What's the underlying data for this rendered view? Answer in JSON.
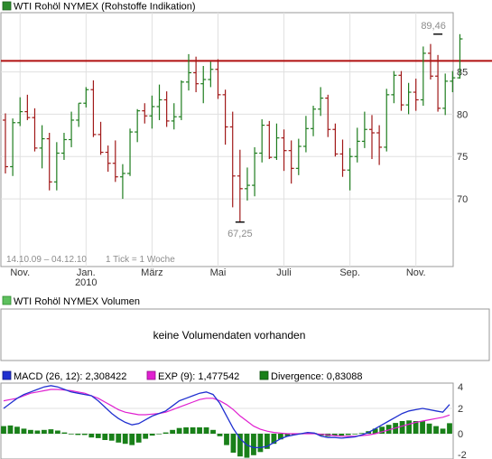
{
  "chart_data": [
    {
      "type": "ohlc",
      "legend": "WTI Rohöl NYMEX (Rohstoffe Indikation)",
      "period": "14.10.09 – 04.12.10",
      "tick_info": "1 Tick = 1 Woche",
      "ylim": [
        62,
        92
      ],
      "yticks": [
        70,
        75,
        80,
        85
      ],
      "x_labels": [
        {
          "label": "Nov.",
          "index": 2
        },
        {
          "label": "Jan.",
          "index": 11
        },
        {
          "label": "2010",
          "index": 11
        },
        {
          "label": "März",
          "index": 20
        },
        {
          "label": "Mai",
          "index": 29
        },
        {
          "label": "Juli",
          "index": 38
        },
        {
          "label": "Sep.",
          "index": 47
        },
        {
          "label": "Nov.",
          "index": 56
        }
      ],
      "reference_line": 86.3,
      "annotations": [
        {
          "text": "89,46",
          "index": 59,
          "value": 89.46
        },
        {
          "text": "67,25",
          "index": 32,
          "value": 67.25
        }
      ],
      "candles": [
        [
          79.3,
          80.1,
          73.0,
          73.8
        ],
        [
          73.8,
          79.5,
          72.7,
          79.0
        ],
        [
          79.0,
          82.0,
          78.6,
          80.3
        ],
        [
          80.3,
          82.3,
          79.3,
          79.6
        ],
        [
          79.6,
          80.7,
          75.6,
          76.0
        ],
        [
          76.0,
          78.7,
          73.6,
          77.1
        ],
        [
          77.1,
          77.8,
          71.0,
          72.0
        ],
        [
          72.0,
          76.7,
          71.0,
          75.4
        ],
        [
          75.4,
          77.8,
          74.6,
          77.0
        ],
        [
          77.0,
          80.3,
          76.1,
          79.3
        ],
        [
          79.3,
          81.3,
          78.5,
          81.3
        ],
        [
          81.3,
          83.2,
          80.8,
          82.9
        ],
        [
          82.9,
          84.0,
          77.3,
          77.6
        ],
        [
          77.6,
          79.1,
          75.2,
          75.5
        ],
        [
          75.5,
          76.3,
          73.2,
          74.2
        ],
        [
          74.2,
          76.9,
          72.0,
          72.6
        ],
        [
          72.6,
          74.1,
          70.0,
          73.0
        ],
        [
          73.0,
          78.3,
          72.7,
          77.9
        ],
        [
          77.9,
          80.6,
          76.7,
          80.4
        ],
        [
          80.4,
          81.3,
          78.9,
          79.8
        ],
        [
          79.8,
          82.2,
          78.3,
          80.9
        ],
        [
          80.9,
          83.5,
          79.3,
          81.7
        ],
        [
          81.7,
          82.7,
          78.5,
          79.2
        ],
        [
          79.2,
          81.3,
          78.2,
          79.7
        ],
        [
          79.7,
          84.0,
          79.3,
          83.8
        ],
        [
          83.8,
          87.1,
          82.8,
          84.9
        ],
        [
          84.9,
          86.8,
          82.6,
          83.6
        ],
        [
          83.6,
          85.7,
          81.3,
          84.1
        ],
        [
          84.1,
          86.2,
          83.2,
          85.3
        ],
        [
          85.3,
          86.5,
          81.8,
          82.3
        ],
        [
          82.3,
          82.9,
          76.4,
          78.5
        ],
        [
          78.5,
          80.3,
          69.0,
          72.7
        ],
        [
          72.7,
          75.8,
          67.25,
          71.2
        ],
        [
          71.2,
          73.7,
          69.8,
          71.6
        ],
        [
          71.6,
          76.1,
          70.3,
          75.4
        ],
        [
          75.4,
          79.4,
          74.3,
          78.7
        ],
        [
          78.7,
          79.2,
          74.7,
          74.9
        ],
        [
          74.9,
          78.9,
          74.6,
          77.2
        ],
        [
          77.2,
          78.2,
          73.3,
          75.7
        ],
        [
          75.7,
          76.9,
          71.8,
          73.6
        ],
        [
          73.6,
          77.1,
          72.8,
          76.2
        ],
        [
          76.2,
          79.8,
          75.5,
          78.3
        ],
        [
          78.3,
          81.0,
          77.4,
          80.6
        ],
        [
          80.6,
          83.2,
          79.8,
          81.9
        ],
        [
          81.9,
          82.3,
          77.3,
          78.2
        ],
        [
          78.2,
          78.9,
          75.0,
          75.3
        ],
        [
          75.3,
          77.0,
          72.6,
          73.4
        ],
        [
          73.4,
          76.0,
          71.0,
          75.0
        ],
        [
          75.0,
          78.4,
          74.3,
          76.8
        ],
        [
          76.8,
          80.3,
          76.0,
          78.2
        ],
        [
          78.2,
          79.9,
          74.7,
          77.8
        ],
        [
          77.8,
          78.7,
          74.0,
          76.1
        ],
        [
          76.1,
          83.0,
          75.6,
          82.3
        ],
        [
          82.3,
          85.1,
          81.3,
          84.6
        ],
        [
          84.6,
          85.1,
          80.4,
          81.1
        ],
        [
          81.1,
          83.7,
          80.0,
          82.6
        ],
        [
          82.6,
          84.2,
          80.4,
          81.7
        ],
        [
          81.7,
          88.0,
          81.0,
          87.2
        ],
        [
          87.2,
          88.3,
          84.1,
          84.5
        ],
        [
          84.5,
          87.0,
          80.3,
          80.7
        ],
        [
          80.7,
          84.8,
          79.9,
          83.9
        ],
        [
          83.9,
          85.1,
          82.6,
          84.3
        ],
        [
          84.3,
          89.46,
          84.2,
          88.9
        ]
      ]
    },
    {
      "type": "volume",
      "legend": "WTI Rohöl NYMEX Volumen",
      "message": "keine Volumendaten vorhanden"
    },
    {
      "type": "macd",
      "legend_macd": "MACD (26, 12): 2,308422",
      "legend_exp": "EXP (9): 1,477542",
      "legend_div": "Divergence: 0,83088",
      "ylim": [
        -2,
        4
      ],
      "yticks": [
        "4",
        "2",
        "0",
        "-2"
      ],
      "ytick_values": [
        4,
        2,
        0,
        -2
      ],
      "macd": [
        2.0,
        2.4,
        2.8,
        3.1,
        3.3,
        3.5,
        3.7,
        3.8,
        3.7,
        3.5,
        3.3,
        3.2,
        3.1,
        3.0,
        2.6,
        2.1,
        1.6,
        1.2,
        0.9,
        0.7,
        0.8,
        1.1,
        1.4,
        1.6,
        1.8,
        2.2,
        2.6,
        2.8,
        3.0,
        3.2,
        3.3,
        3.1,
        2.4,
        1.4,
        0.4,
        -0.4,
        -0.9,
        -1.1,
        -1.1,
        -1.0,
        -0.7,
        -0.4,
        -0.2,
        -0.1,
        0.0,
        0.1,
        0.05,
        -0.2,
        -0.3,
        -0.3,
        -0.35,
        -0.3,
        -0.25,
        -0.1,
        0.1,
        0.4,
        0.7,
        1.0,
        1.3,
        1.6,
        1.8,
        1.9,
        2.0,
        1.9,
        1.8,
        1.7,
        2.31
      ],
      "exp": [
        2.6,
        2.7,
        2.8,
        3.0,
        3.2,
        3.3,
        3.4,
        3.5,
        3.5,
        3.45,
        3.4,
        3.3,
        3.2,
        3.0,
        2.8,
        2.5,
        2.2,
        1.9,
        1.7,
        1.6,
        1.5,
        1.5,
        1.55,
        1.6,
        1.7,
        1.9,
        2.1,
        2.3,
        2.5,
        2.7,
        2.8,
        2.8,
        2.6,
        2.3,
        1.9,
        1.4,
        1.0,
        0.6,
        0.35,
        0.2,
        0.1,
        0.05,
        0.0,
        0.0,
        0.0,
        0.0,
        0.0,
        -0.05,
        -0.1,
        -0.15,
        -0.2,
        -0.2,
        -0.2,
        -0.15,
        -0.1,
        0.0,
        0.15,
        0.3,
        0.45,
        0.6,
        0.75,
        0.9,
        1.0,
        1.1,
        1.2,
        1.3,
        1.48
      ],
      "divergence": [
        0.6,
        0.65,
        0.55,
        0.4,
        0.3,
        0.25,
        0.3,
        0.35,
        0.25,
        0.1,
        -0.05,
        -0.1,
        -0.1,
        -0.3,
        -0.35,
        -0.5,
        -0.55,
        -0.7,
        -0.8,
        -0.9,
        -0.7,
        -0.4,
        -0.15,
        0.0,
        0.1,
        0.3,
        0.45,
        0.5,
        0.5,
        0.5,
        0.5,
        0.3,
        -0.2,
        -0.9,
        -1.5,
        -1.8,
        -1.9,
        -1.7,
        -1.45,
        -1.2,
        -0.8,
        -0.45,
        -0.2,
        -0.1,
        0.0,
        0.1,
        0.05,
        -0.15,
        -0.2,
        -0.15,
        -0.15,
        -0.1,
        -0.05,
        0.05,
        0.2,
        0.4,
        0.55,
        0.7,
        0.85,
        1.0,
        1.05,
        1.0,
        1.0,
        0.8,
        0.6,
        0.4,
        0.83
      ]
    }
  ],
  "colors": {
    "up": "#1e7d1e",
    "down": "#a01818",
    "ref_line": "#b01010",
    "macd_line": "#2030d0",
    "exp_line": "#e020d0",
    "divergence_bar": "#198019",
    "legend_square_price": "#2c8a2c",
    "legend_square_volume": "#5ec05e",
    "grid": "#e0e0e0",
    "border": "#9a9a9a",
    "axis_text": "#333333",
    "muted_text": "#8c8c8c"
  }
}
